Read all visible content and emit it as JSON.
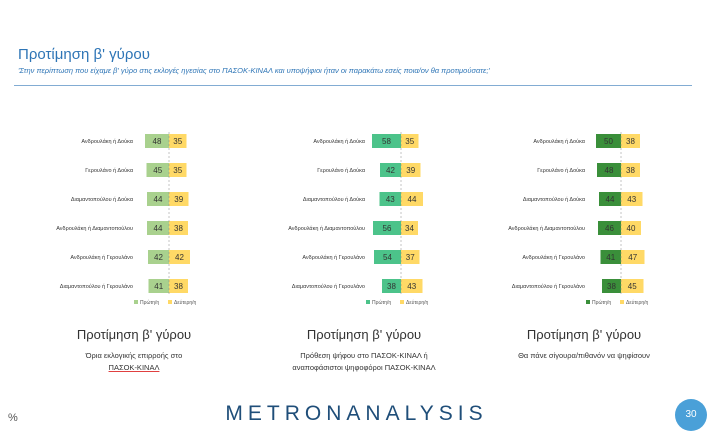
{
  "page": {
    "title": "Προτίμηση β' γύρου",
    "subtitle": "'Στην περίπτωση που είχαμε β' γύρο στις εκλογές ηγεσίας στο ΠΑΣΟΚ-ΚΙΝΑΛ και υποψήφιοι ήταν οι παρακάτω εσείς ποια/ον θα προτιμούσατε;'",
    "percent_sign": "%",
    "brand": "METRONANALYSIS",
    "page_number": "30"
  },
  "panels": [
    {
      "caption": "Προτίμηση β' γύρου",
      "note_line1": "Όρια εκλογικής επιρροής στο",
      "note_line2": "ΠΑΣΟΚ-ΚΙΝΑΛ"
    },
    {
      "caption": "Προτίμηση β' γύρου",
      "note_line1": "Πρόθεση ψήφου στο ΠΑΣΟΚ-ΚΙΝΑΛ ή",
      "note_line2": "αναποφάσιστοι ψηφοφόροι ΠΑΣΟΚ-ΚΙΝΑΛ"
    },
    {
      "caption": "Προτίμηση β' γύρου",
      "note_line1": "Θα πάνε σίγουρα/πιθανόν να ψηφίσουν",
      "note_line2": ""
    }
  ],
  "chart_data": [
    {
      "type": "bar",
      "categories": [
        "Ανδρουλάκη ή Δούκα",
        "Γερουλάνο ή Δούκα",
        "Διαμαντοπούλου ή Δούκα",
        "Ανδρουλάκη ή Διαμαντοπούλου",
        "Ανδρουλάκη ή Γερουλάνο",
        "Διαμαντοπούλου ή Γερουλάνο"
      ],
      "series": [
        {
          "name": "Πρώτη/η",
          "values": [
            48,
            45,
            44,
            44,
            42,
            41
          ],
          "color": "#a9d18e"
        },
        {
          "name": "Δεύτερη/η",
          "values": [
            35,
            35,
            39,
            38,
            42,
            38
          ],
          "color": "#ffd966"
        }
      ]
    },
    {
      "type": "bar",
      "categories": [
        "Ανδρουλάκη ή Δούκα",
        "Γερουλάνο ή Δούκα",
        "Διαμαντοπούλου ή Δούκα",
        "Ανδρουλάκη ή Διαμαντοπούλου",
        "Ανδρουλάκη ή Γερουλάνο",
        "Διαμαντοπούλου ή Γερουλάνο"
      ],
      "series": [
        {
          "name": "Πρώτη/η",
          "values": [
            58,
            42,
            43,
            56,
            54,
            38
          ],
          "color": "#4cc38a"
        },
        {
          "name": "Δεύτερη/η",
          "values": [
            35,
            39,
            44,
            34,
            37,
            43
          ],
          "color": "#ffd966"
        }
      ]
    },
    {
      "type": "bar",
      "categories": [
        "Ανδρουλάκη ή Δούκα",
        "Γερουλάνο ή Δούκα",
        "Διαμαντοπούλου ή Δούκα",
        "Ανδρουλάκη ή Διαμαντοπούλου",
        "Ανδρουλάκη ή Γερουλάνο",
        "Διαμαντοπούλου ή Γερουλάνο"
      ],
      "series": [
        {
          "name": "Πρώτη/η",
          "values": [
            50,
            48,
            44,
            46,
            41,
            38
          ],
          "color": "#3a8f3a"
        },
        {
          "name": "Δεύτερη/η",
          "values": [
            38,
            38,
            43,
            40,
            47,
            45
          ],
          "color": "#ffd966"
        }
      ]
    }
  ]
}
